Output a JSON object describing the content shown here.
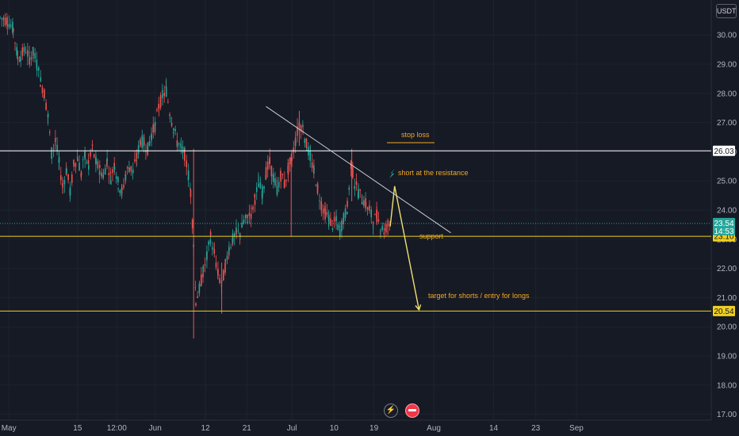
{
  "header": {
    "currency": "USDT"
  },
  "chart_data": {
    "type": "candlestick",
    "ylim": [
      16.8,
      31.2
    ],
    "y_ticks": [
      "30.00",
      "29.00",
      "28.00",
      "27.00",
      "26.00",
      "25.00",
      "24.00",
      "23.00",
      "22.00",
      "21.00",
      "20.00",
      "19.00",
      "18.00",
      "17.00"
    ],
    "x_ticks": [
      "May",
      "15",
      "12:00",
      "Jun",
      "12",
      "21",
      "Jul",
      "10",
      "19",
      "Aug",
      "14",
      "23",
      "Sep"
    ],
    "horizontal_levels": [
      {
        "value": 26.03,
        "label": "26.03",
        "color": "#ffffff"
      },
      {
        "value": 23.1,
        "label": "23.10",
        "color": "#f0d020"
      },
      {
        "value": 20.54,
        "label": "20.54",
        "color": "#f0d020"
      }
    ],
    "current_price": {
      "value": 23.54,
      "label": "23.54",
      "countdown": "14:53",
      "color": "#26a69a"
    },
    "trendline": {
      "from": [
        0.36,
        27.55
      ],
      "to": [
        0.61,
        23.22
      ]
    },
    "arrow_path": [
      [
        0.528,
        23.44
      ],
      [
        0.534,
        24.82
      ],
      [
        0.567,
        20.58
      ]
    ],
    "annotations": {
      "stop_loss": "stop loss",
      "short": "short at the resistance",
      "support": "support",
      "target": "target for shorts / entry for longs"
    },
    "price_path": [
      [
        0.0,
        30.6
      ],
      [
        0.01,
        30.5
      ],
      [
        0.018,
        30.2
      ],
      [
        0.024,
        29.2
      ],
      [
        0.028,
        29.3
      ],
      [
        0.035,
        29.5
      ],
      [
        0.04,
        29.2
      ],
      [
        0.045,
        29.4
      ],
      [
        0.05,
        29.0
      ],
      [
        0.055,
        28.4
      ],
      [
        0.06,
        28.0
      ],
      [
        0.065,
        27.2
      ],
      [
        0.07,
        25.9
      ],
      [
        0.075,
        26.4
      ],
      [
        0.08,
        25.6
      ],
      [
        0.085,
        24.8
      ],
      [
        0.09,
        25.4
      ],
      [
        0.095,
        24.6
      ],
      [
        0.1,
        25.6
      ],
      [
        0.105,
        25.8
      ],
      [
        0.11,
        25.2
      ],
      [
        0.115,
        25.9
      ],
      [
        0.12,
        25.5
      ],
      [
        0.125,
        26.1
      ],
      [
        0.13,
        25.6
      ],
      [
        0.135,
        25.4
      ],
      [
        0.14,
        25.2
      ],
      [
        0.145,
        25.7
      ],
      [
        0.15,
        25.1
      ],
      [
        0.155,
        25.6
      ],
      [
        0.16,
        24.9
      ],
      [
        0.165,
        24.6
      ],
      [
        0.17,
        25.2
      ],
      [
        0.175,
        25.5
      ],
      [
        0.18,
        25.3
      ],
      [
        0.185,
        25.8
      ],
      [
        0.19,
        26.4
      ],
      [
        0.195,
        26.3
      ],
      [
        0.2,
        26.1
      ],
      [
        0.205,
        26.6
      ],
      [
        0.21,
        26.9
      ],
      [
        0.215,
        27.6
      ],
      [
        0.22,
        27.9
      ],
      [
        0.225,
        28.1
      ],
      [
        0.23,
        27.3
      ],
      [
        0.235,
        26.8
      ],
      [
        0.24,
        26.3
      ],
      [
        0.245,
        26.1
      ],
      [
        0.25,
        25.9
      ],
      [
        0.255,
        25.2
      ],
      [
        0.258,
        24.6
      ],
      [
        0.262,
        22.9
      ],
      [
        0.265,
        20.9
      ],
      [
        0.27,
        21.3
      ],
      [
        0.275,
        21.9
      ],
      [
        0.28,
        22.4
      ],
      [
        0.285,
        23.1
      ],
      [
        0.29,
        22.5
      ],
      [
        0.295,
        21.8
      ],
      [
        0.3,
        21.4
      ],
      [
        0.305,
        22.1
      ],
      [
        0.31,
        22.7
      ],
      [
        0.315,
        23.0
      ],
      [
        0.32,
        23.2
      ],
      [
        0.325,
        23.2
      ],
      [
        0.33,
        23.6
      ],
      [
        0.335,
        23.7
      ],
      [
        0.34,
        23.9
      ],
      [
        0.345,
        24.4
      ],
      [
        0.35,
        24.9
      ],
      [
        0.355,
        24.6
      ],
      [
        0.36,
        25.3
      ],
      [
        0.365,
        25.6
      ],
      [
        0.37,
        25.1
      ],
      [
        0.375,
        24.7
      ],
      [
        0.38,
        25.2
      ],
      [
        0.385,
        24.9
      ],
      [
        0.39,
        25.4
      ],
      [
        0.395,
        25.8
      ],
      [
        0.4,
        26.4
      ],
      [
        0.405,
        27.0
      ],
      [
        0.41,
        26.8
      ],
      [
        0.415,
        26.2
      ],
      [
        0.42,
        25.8
      ],
      [
        0.425,
        25.3
      ],
      [
        0.43,
        24.7
      ],
      [
        0.435,
        24.2
      ],
      [
        0.44,
        23.9
      ],
      [
        0.445,
        23.7
      ],
      [
        0.45,
        23.5
      ],
      [
        0.455,
        23.6
      ],
      [
        0.46,
        23.3
      ],
      [
        0.465,
        23.7
      ],
      [
        0.47,
        24.1
      ],
      [
        0.475,
        25.6
      ],
      [
        0.48,
        24.9
      ],
      [
        0.485,
        24.6
      ],
      [
        0.49,
        24.4
      ],
      [
        0.495,
        24.2
      ],
      [
        0.5,
        24.0
      ],
      [
        0.505,
        23.6
      ],
      [
        0.51,
        23.8
      ],
      [
        0.515,
        23.4
      ],
      [
        0.52,
        23.3
      ],
      [
        0.525,
        23.5
      ],
      [
        0.528,
        23.54
      ]
    ]
  }
}
